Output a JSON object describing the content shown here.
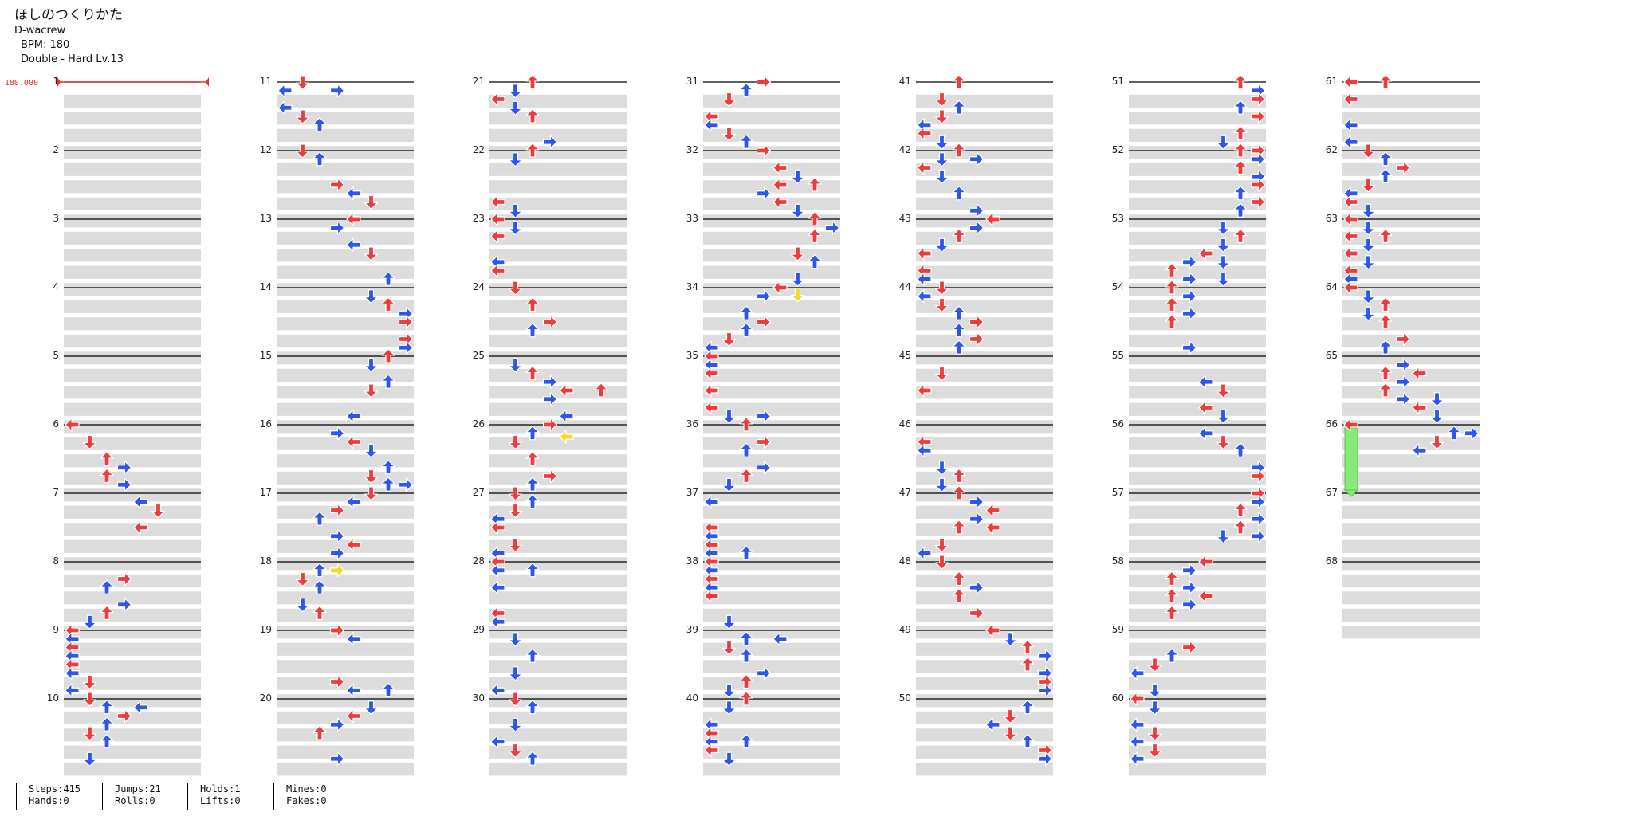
{
  "song": {
    "title": "ほしのつくりかた",
    "artist": "D-wacrew",
    "bpm_label": "BPM: 180",
    "difficulty": "Double - Hard Lv.13"
  },
  "bpm_marker": {
    "label": "180.000",
    "color": "#e8302a"
  },
  "colors": {
    "quarter": "#ee3b3b",
    "eighth": "#2e55ee",
    "other": "#f2da2a",
    "hold": "#88e878",
    "row_shade": "#dcdcdc",
    "measure_line": "#000000"
  },
  "chart_layout": {
    "measures_per_column": 10,
    "total_measures": 68,
    "panels_per_side": 4,
    "lanes": 8,
    "measure_labels": [
      "1",
      "2",
      "3",
      "4",
      "5",
      "6",
      "7",
      "8",
      "9",
      "10",
      "11",
      "12",
      "13",
      "14",
      "15",
      "16",
      "17",
      "18",
      "19",
      "20",
      "21",
      "22",
      "23",
      "24",
      "25",
      "26",
      "27",
      "28",
      "29",
      "30",
      "31",
      "32",
      "33",
      "34",
      "35",
      "36",
      "37",
      "38",
      "39",
      "40",
      "41",
      "42",
      "43",
      "44",
      "45",
      "46",
      "47",
      "48",
      "49",
      "50",
      "51",
      "52",
      "53",
      "54",
      "55",
      "56",
      "57",
      "58",
      "59",
      "60",
      "61",
      "62",
      "63",
      "64",
      "65",
      "66",
      "67",
      "68"
    ]
  },
  "notes_summary": {
    "notation": "each entry is measure:beat:lane; lane 0-3 = left pad (L,D,U,R), 4-7 = right pad",
    "sample": [
      "6:0:0",
      "6:0.5:1",
      "6:1:2",
      "6:1.5:3",
      "7:0:3",
      "7:0.5:4",
      "7:1.5:6",
      "7:2:7",
      "11:0:1",
      "11:0:3",
      "12:0:5",
      "13:0:7",
      "14:0:6",
      "15:0:1",
      "21:0:7",
      "24:0:0",
      "26:0:4",
      "31:0:5",
      "34:0:7",
      "36:0:0",
      "41:0:2",
      "44:0:0",
      "46:0:7",
      "51:0:4",
      "54:0:0",
      "61:0:2",
      "65:0:7",
      "66:0:0"
    ]
  },
  "stats": {
    "steps": "Steps:415",
    "hands": "Hands:0",
    "jumps": "Jumps:21",
    "rolls": "Rolls:0",
    "holds": "Holds:1",
    "lifts": "Lifts:0",
    "mines": "Mines:0",
    "fakes": "Fakes:0"
  }
}
